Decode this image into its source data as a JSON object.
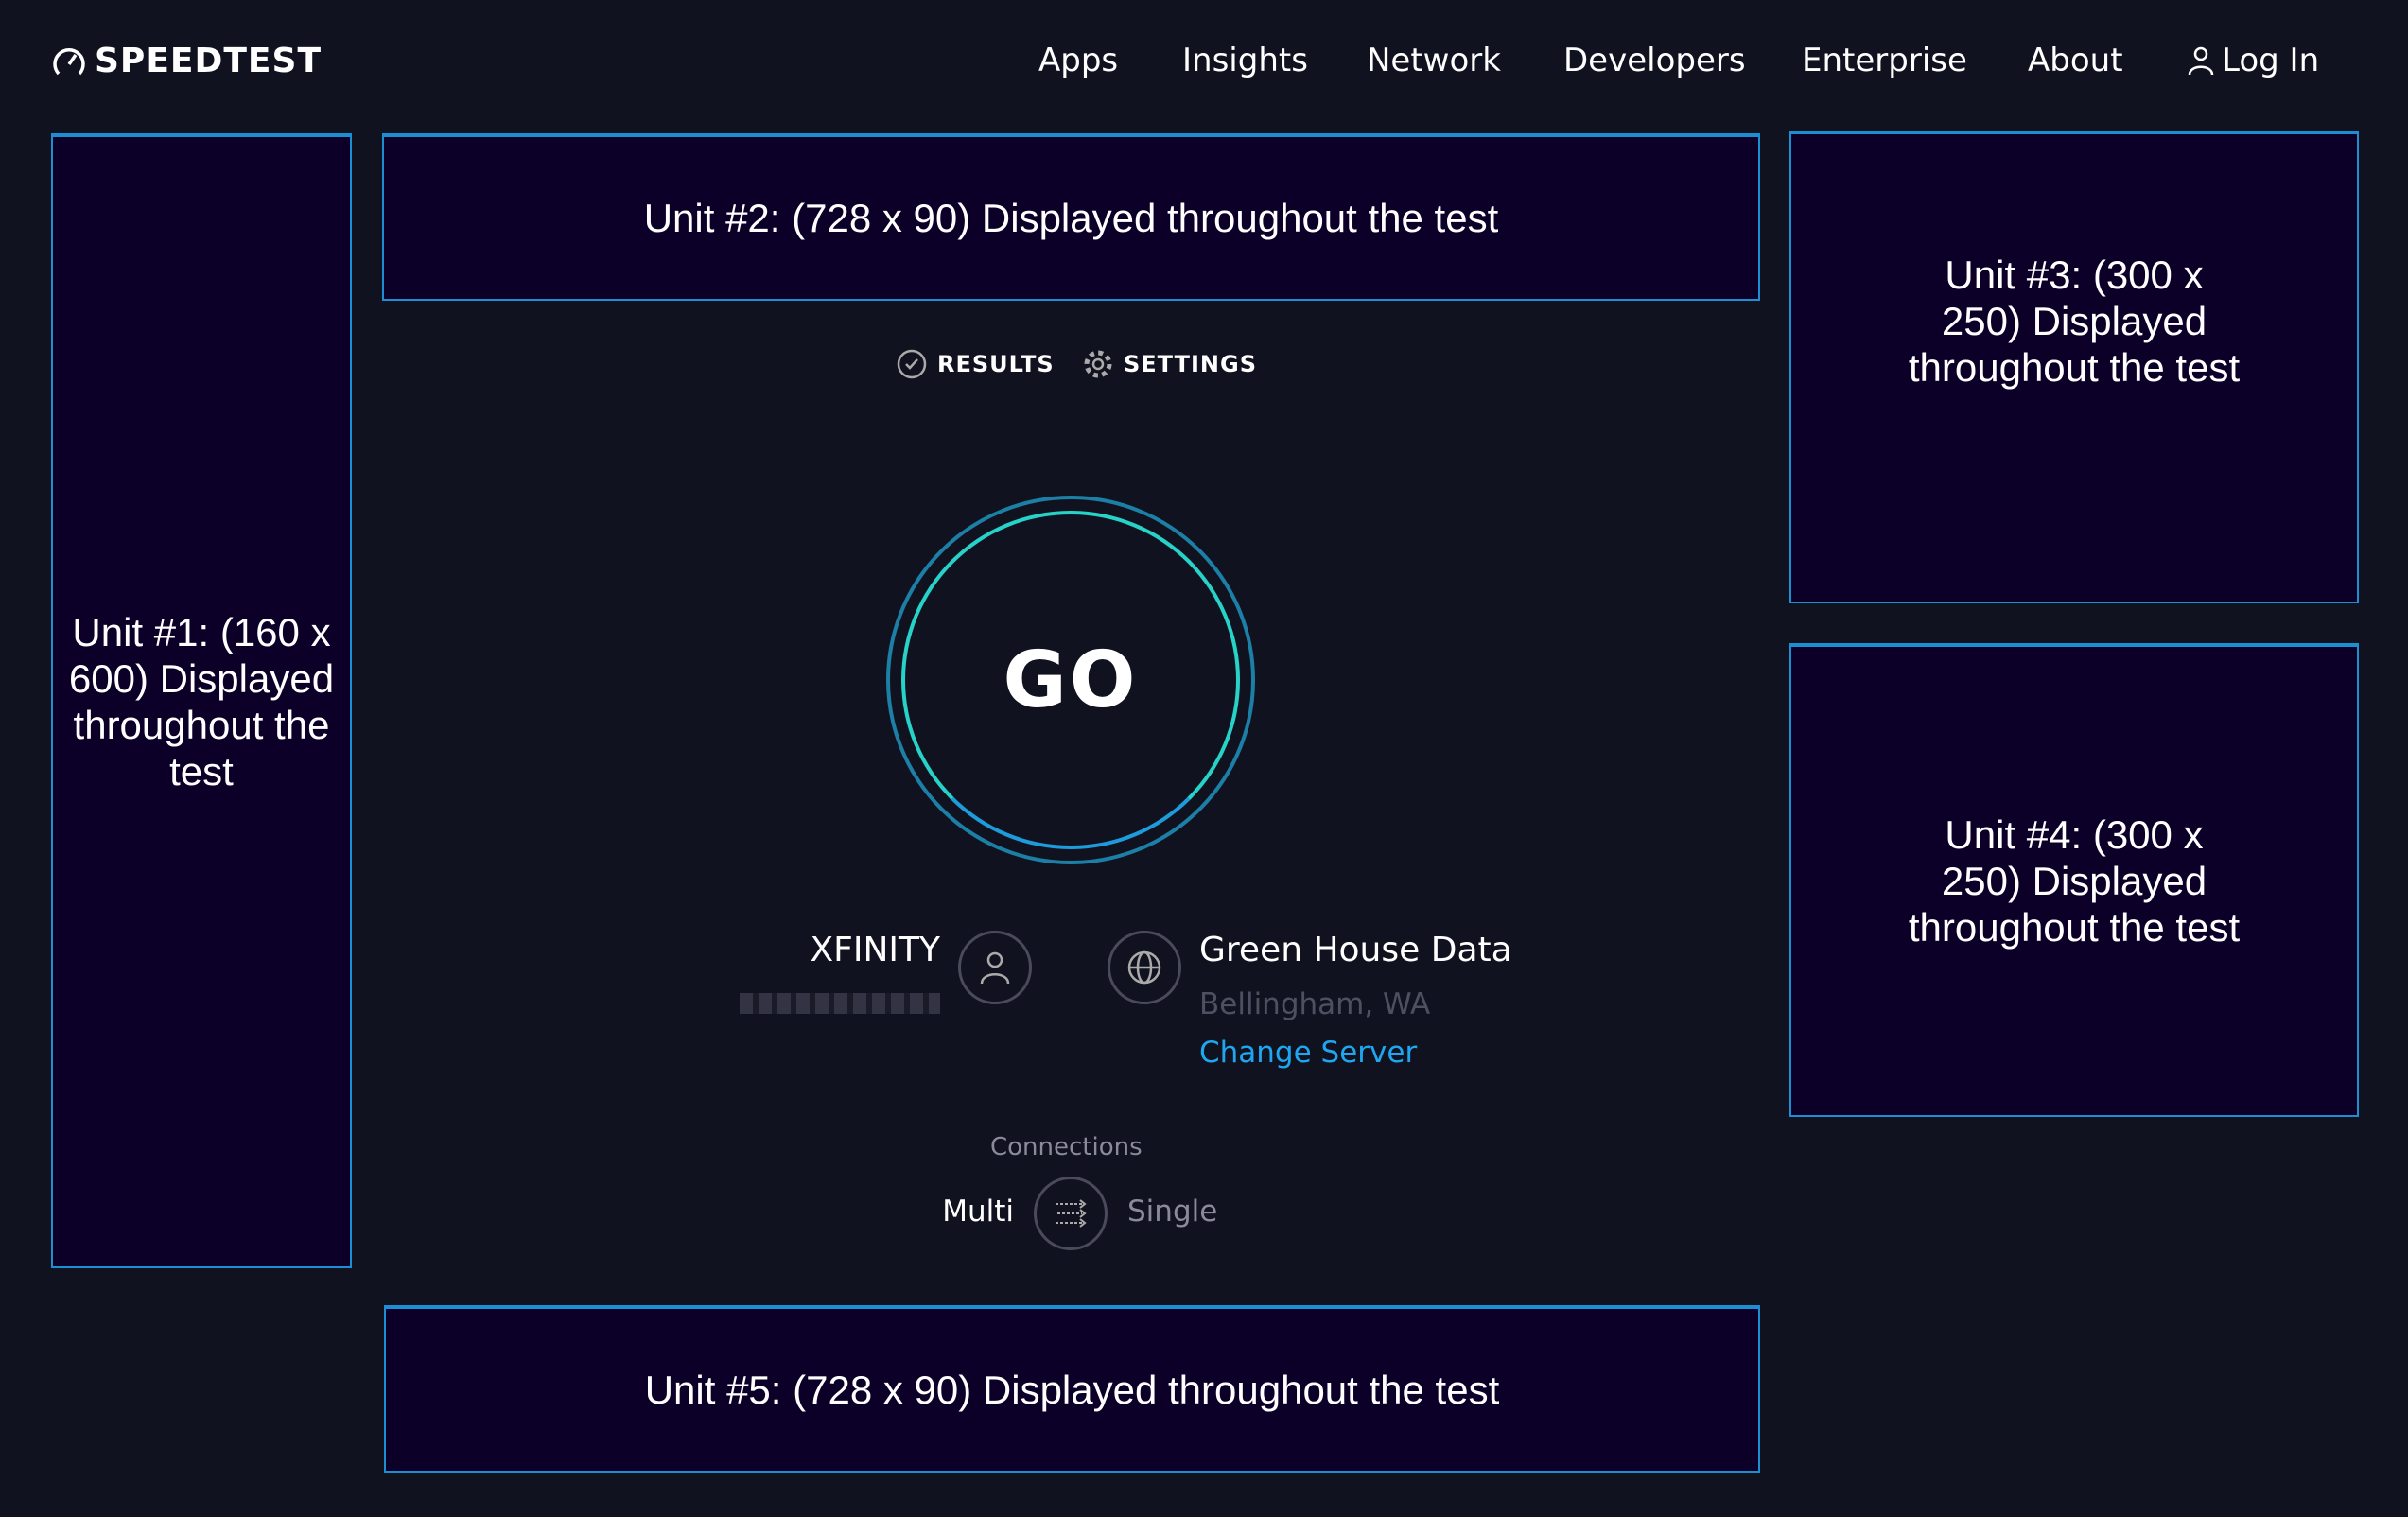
{
  "header": {
    "logo": "SPEEDTEST",
    "nav": [
      "Apps",
      "Insights",
      "Network",
      "Developers",
      "Enterprise",
      "About"
    ],
    "login": "Log In"
  },
  "ads": {
    "unit1": "Unit #1: (160 x 600) Displayed throughout the test",
    "unit2": "Unit #2: (728 x 90) Displayed throughout the test",
    "unit3": "Unit #3: (300 x 250) Displayed throughout the test",
    "unit4": "Unit #4: (300 x 250) Displayed throughout the test",
    "unit5": "Unit #5: (728 x 90) Displayed throughout the test"
  },
  "tabs": {
    "results": "RESULTS",
    "settings": "SETTINGS"
  },
  "go": "GO",
  "isp": {
    "name": "XFINITY"
  },
  "server": {
    "name": "Green House Data",
    "location": "Bellingham, WA",
    "change": "Change Server"
  },
  "connections": {
    "label": "Connections",
    "multi": "Multi",
    "single": "Single",
    "selected": "Multi"
  },
  "colors": {
    "background": "#11121f",
    "ad_bg": "#0c0029",
    "ad_border": "#1b8fd2",
    "link": "#1ea7f0",
    "go_ring": "#27d3c8"
  }
}
